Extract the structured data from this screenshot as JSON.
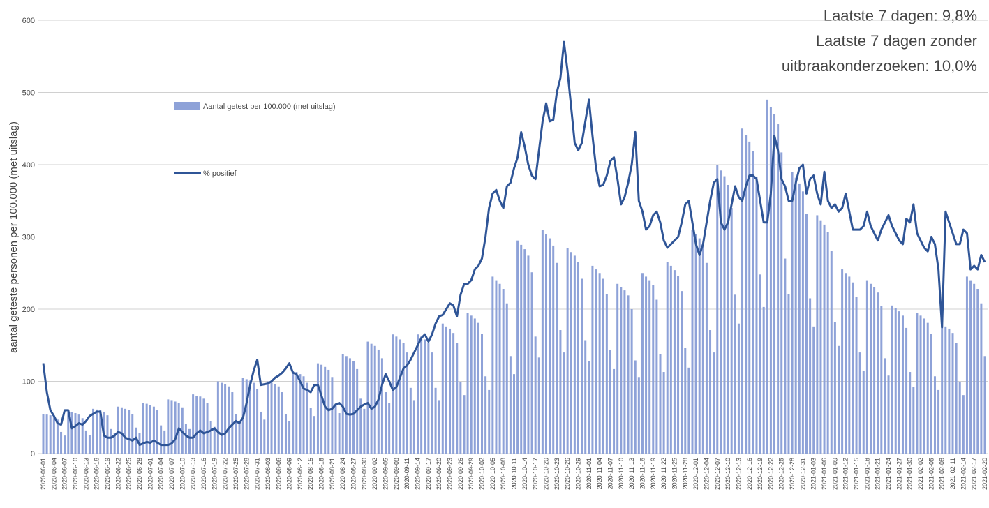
{
  "chart_data": {
    "type": "bar-line",
    "y_label": "aantal geteste personen per 100.000 (met uitslag)",
    "annotations": [
      "Laatste 7 dagen: 9,8%",
      "Laatste 7 dagen zonder",
      "uitbraakonderzoeken: 10,0%"
    ],
    "ylim": [
      0,
      600
    ],
    "yticks": [
      0,
      100,
      200,
      300,
      400,
      500,
      600
    ],
    "grid": true,
    "categories": [
      "2020-06-01",
      null,
      null,
      "2020-06-04",
      null,
      null,
      "2020-06-07",
      null,
      null,
      "2020-06-10",
      null,
      null,
      "2020-06-13",
      null,
      null,
      "2020-06-16",
      null,
      null,
      "2020-06-19",
      null,
      null,
      "2020-06-22",
      null,
      null,
      "2020-06-25",
      null,
      null,
      "2020-06-28",
      null,
      null,
      "2020-07-01",
      null,
      null,
      "2020-07-04",
      null,
      null,
      "2020-07-07",
      null,
      null,
      "2020-07-10",
      null,
      null,
      "2020-07-13",
      null,
      null,
      "2020-07-16",
      null,
      null,
      "2020-07-19",
      null,
      null,
      "2020-07-22",
      null,
      null,
      "2020-07-25",
      null,
      null,
      "2020-07-28",
      null,
      null,
      "2020-07-31",
      null,
      null,
      "2020-08-03",
      null,
      null,
      "2020-08-06",
      null,
      null,
      "2020-08-09",
      null,
      null,
      "2020-08-12",
      null,
      null,
      "2020-08-15",
      null,
      null,
      "2020-08-18",
      null,
      null,
      "2020-08-21",
      null,
      null,
      "2020-08-24",
      null,
      null,
      "2020-08-27",
      null,
      null,
      "2020-08-30",
      null,
      null,
      "2020-09-02",
      null,
      null,
      "2020-09-05",
      null,
      null,
      "2020-09-08",
      null,
      null,
      "2020-09-11",
      null,
      null,
      "2020-09-14",
      null,
      null,
      "2020-09-17",
      null,
      null,
      "2020-09-20",
      null,
      null,
      "2020-09-23",
      null,
      null,
      "2020-09-26",
      null,
      null,
      "2020-09-29",
      null,
      null,
      "2020-10-02",
      null,
      null,
      "2020-10-05",
      null,
      null,
      "2020-10-08",
      null,
      null,
      "2020-10-11",
      null,
      null,
      "2020-10-14",
      null,
      null,
      "2020-10-17",
      null,
      null,
      "2020-10-20",
      null,
      null,
      "2020-10-23",
      null,
      null,
      "2020-10-26",
      null,
      null,
      "2020-10-29",
      null,
      null,
      "2020-11-01",
      null,
      null,
      "2020-11-04",
      null,
      null,
      "2020-11-07",
      null,
      null,
      "2020-11-10",
      null,
      null,
      "2020-11-13",
      null,
      null,
      "2020-11-16",
      null,
      null,
      "2020-11-19",
      null,
      null,
      "2020-11-22",
      null,
      null,
      "2020-11-25",
      null,
      null,
      "2020-11-28",
      null,
      null,
      "2020-12-01",
      null,
      null,
      "2020-12-04",
      null,
      null,
      "2020-12-07",
      null,
      null,
      "2020-12-10",
      null,
      null,
      "2020-12-13",
      null,
      null,
      "2020-12-16",
      null,
      null,
      "2020-12-19",
      null,
      null,
      "2020-12-22",
      null,
      null,
      "2020-12-25",
      null,
      null,
      "2020-12-28",
      null,
      null,
      "2020-12-31",
      null,
      null,
      "2021-01-03",
      null,
      null,
      "2021-01-06",
      null,
      null,
      "2021-01-09",
      null,
      null,
      "2021-01-12",
      null,
      null,
      "2021-01-15",
      null,
      null,
      "2021-01-18",
      null,
      null,
      "2021-01-21",
      null,
      null,
      "2021-01-24",
      null,
      null,
      "2021-01-27",
      null,
      null,
      "2021-01-30",
      null,
      null,
      "2021-02-02",
      null,
      null,
      "2021-02-05",
      null,
      null,
      "2021-02-08",
      null,
      null,
      "2021-02-11",
      null,
      null,
      "2021-02-14",
      null,
      null,
      "2021-02-17",
      null,
      null,
      "2021-02-20"
    ],
    "series": [
      {
        "name": "Aantal getest per 100.000 (met uitslag)",
        "type": "bar",
        "color": "#8ea2d8",
        "values": [
          55,
          54,
          53,
          51,
          47,
          30,
          25,
          58,
          57,
          56,
          54,
          49,
          32,
          26,
          62,
          61,
          60,
          58,
          53,
          34,
          28,
          65,
          64,
          62,
          60,
          55,
          36,
          29,
          70,
          69,
          67,
          65,
          60,
          39,
          32,
          75,
          74,
          72,
          70,
          64,
          41,
          34,
          82,
          80,
          79,
          76,
          70,
          45,
          37,
          100,
          98,
          96,
          93,
          85,
          55,
          45,
          105,
          103,
          101,
          98,
          89,
          58,
          47,
          100,
          98,
          96,
          93,
          85,
          55,
          45,
          115,
          113,
          110,
          107,
          98,
          63,
          52,
          125,
          123,
          120,
          116,
          106,
          69,
          56,
          138,
          135,
          132,
          128,
          117,
          76,
          62,
          155,
          152,
          149,
          144,
          132,
          85,
          70,
          165,
          162,
          158,
          153,
          140,
          91,
          74,
          165,
          162,
          158,
          153,
          140,
          91,
          74,
          180,
          176,
          173,
          167,
          153,
          99,
          81,
          195,
          191,
          187,
          181,
          166,
          107,
          88,
          245,
          240,
          235,
          228,
          208,
          135,
          110,
          295,
          289,
          283,
          274,
          251,
          162,
          133,
          310,
          304,
          298,
          288,
          264,
          171,
          140,
          285,
          279,
          274,
          265,
          242,
          157,
          128,
          260,
          255,
          250,
          242,
          221,
          143,
          117,
          235,
          230,
          226,
          219,
          200,
          129,
          106,
          250,
          245,
          240,
          233,
          213,
          138,
          113,
          265,
          260,
          254,
          246,
          225,
          146,
          119,
          310,
          304,
          298,
          288,
          264,
          171,
          140,
          400,
          392,
          384,
          372,
          340,
          220,
          180,
          450,
          441,
          432,
          419,
          383,
          248,
          203,
          490,
          480,
          470,
          456,
          417,
          270,
          221,
          390,
          382,
          374,
          363,
          332,
          215,
          176,
          330,
          323,
          317,
          307,
          281,
          182,
          149,
          255,
          250,
          245,
          237,
          217,
          140,
          115,
          240,
          235,
          230,
          223,
          204,
          132,
          108,
          205,
          201,
          197,
          191,
          174,
          113,
          92,
          195,
          191,
          187,
          181,
          166,
          107,
          88,
          180,
          176,
          173,
          167,
          153,
          99,
          81,
          245,
          240,
          235,
          228,
          208,
          135
        ]
      },
      {
        "name": "% positief",
        "type": "line",
        "color": "#2f5597",
        "values": [
          125,
          85,
          60,
          52,
          42,
          40,
          60,
          60,
          35,
          38,
          42,
          40,
          45,
          52,
          55,
          58,
          58,
          25,
          22,
          22,
          25,
          30,
          28,
          22,
          20,
          18,
          22,
          12,
          14,
          16,
          15,
          18,
          15,
          12,
          12,
          12,
          14,
          20,
          35,
          30,
          25,
          22,
          22,
          28,
          32,
          28,
          30,
          32,
          35,
          30,
          26,
          28,
          35,
          40,
          45,
          42,
          50,
          70,
          95,
          115,
          130,
          95,
          96,
          97,
          100,
          105,
          108,
          112,
          118,
          125,
          112,
          110,
          100,
          90,
          88,
          85,
          95,
          95,
          80,
          65,
          60,
          62,
          68,
          70,
          65,
          55,
          54,
          55,
          60,
          65,
          68,
          70,
          62,
          65,
          75,
          95,
          110,
          100,
          88,
          92,
          105,
          118,
          122,
          130,
          140,
          150,
          160,
          165,
          155,
          165,
          180,
          190,
          192,
          200,
          208,
          205,
          190,
          220,
          235,
          235,
          240,
          255,
          260,
          270,
          300,
          340,
          360,
          365,
          350,
          340,
          370,
          375,
          395,
          410,
          445,
          425,
          400,
          385,
          380,
          420,
          460,
          485,
          460,
          462,
          500,
          520,
          570,
          530,
          480,
          430,
          420,
          430,
          460,
          490,
          440,
          395,
          370,
          372,
          385,
          405,
          410,
          380,
          345,
          355,
          375,
          400,
          445,
          350,
          335,
          310,
          315,
          330,
          335,
          320,
          295,
          285,
          290,
          295,
          300,
          320,
          345,
          350,
          320,
          290,
          275,
          290,
          320,
          350,
          375,
          380,
          320,
          310,
          320,
          345,
          370,
          355,
          350,
          370,
          385,
          385,
          380,
          350,
          320,
          320,
          360,
          440,
          420,
          380,
          370,
          350,
          350,
          375,
          395,
          400,
          360,
          380,
          385,
          360,
          345,
          390,
          350,
          340,
          345,
          335,
          340,
          360,
          335,
          310,
          310,
          310,
          315,
          335,
          315,
          305,
          295,
          310,
          320,
          330,
          315,
          305,
          295,
          290,
          325,
          320,
          345,
          305,
          295,
          285,
          280,
          300,
          290,
          255,
          175,
          335,
          320,
          305,
          290,
          290,
          310,
          305,
          255,
          260,
          255,
          275,
          265
        ]
      }
    ]
  }
}
